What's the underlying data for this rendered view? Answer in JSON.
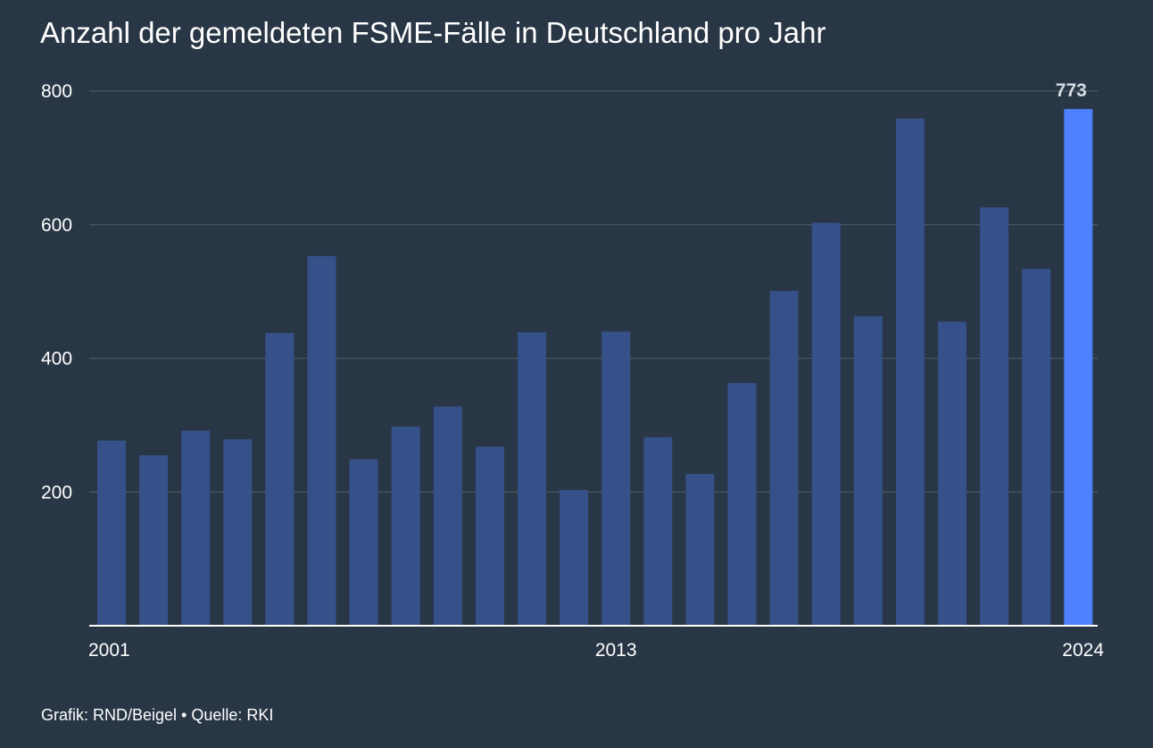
{
  "title": "Anzahl der gemeldeten FSME-Fälle in Deutschland pro Jahr",
  "footer": "Grafik: RND/Beigel • Quelle: RKI",
  "colors": {
    "background": "#283645",
    "bar": "#365189",
    "highlight": "#4f80ff",
    "grid": "#45525f"
  },
  "chart_data": {
    "type": "bar",
    "categories": [
      "2001",
      "2002",
      "2003",
      "2004",
      "2005",
      "2006",
      "2007",
      "2008",
      "2009",
      "2010",
      "2011",
      "2012",
      "2013",
      "2014",
      "2015",
      "2016",
      "2017",
      "2018",
      "2019",
      "2020",
      "2021",
      "2022",
      "2023",
      "2024"
    ],
    "values": [
      277,
      255,
      292,
      279,
      438,
      553,
      249,
      298,
      328,
      268,
      439,
      203,
      440,
      282,
      227,
      363,
      501,
      603,
      463,
      759,
      455,
      626,
      534,
      773
    ],
    "x_tick_labels": [
      "2001",
      "2013",
      "2024"
    ],
    "y_ticks": [
      200,
      400,
      600,
      800
    ],
    "ylim": [
      0,
      800
    ],
    "highlight_index": 23,
    "data_labels": [
      {
        "index": 23,
        "text": "773"
      }
    ],
    "xlabel": "",
    "ylabel": "",
    "grid": true,
    "legend": "none"
  }
}
